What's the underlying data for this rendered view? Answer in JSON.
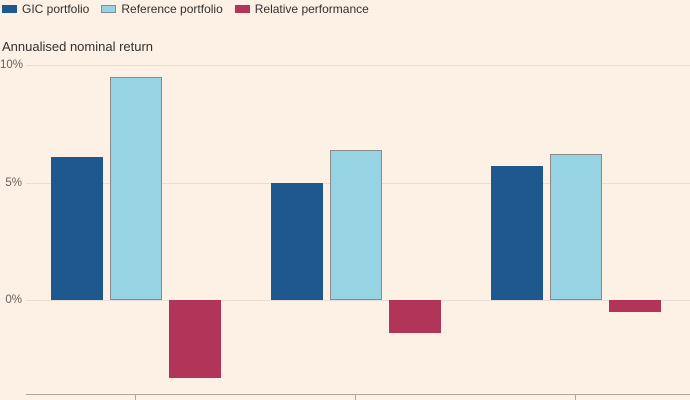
{
  "colors": {
    "background": "#FDF1E5",
    "text": "#33302E",
    "tick_text": "#66605C",
    "gridline": "#E9DDD3",
    "axis_line": "#B3A89E",
    "gic_portfolio": "#1F588E",
    "reference_portfolio": "#96D3E3",
    "reference_portfolio_border": "#8A8A8A",
    "relative_performance": "#B23458"
  },
  "chart_data": {
    "type": "bar",
    "title": "Annualised nominal return",
    "categories": [
      "",
      "",
      ""
    ],
    "series": [
      {
        "name": "GIC portfolio",
        "color": "#1F588E",
        "values": [
          6.1,
          5.0,
          5.7
        ]
      },
      {
        "name": "Reference portfolio",
        "color": "#96D3E3",
        "swatch_border": "#8A8A8A",
        "values": [
          9.5,
          6.4,
          6.2
        ]
      },
      {
        "name": "Relative performance",
        "color": "#B23458",
        "values": [
          -3.3,
          -1.4,
          -0.5
        ]
      }
    ],
    "ylabel": "Annualised nominal return",
    "xlabel": "",
    "yticks": [
      {
        "label": "10%",
        "value": 10
      },
      {
        "label": "5%",
        "value": 5
      },
      {
        "label": "0%",
        "value": 0
      }
    ],
    "ylim": [
      -4.0,
      10.3
    ],
    "grid": true,
    "legend_position": "top-left"
  }
}
